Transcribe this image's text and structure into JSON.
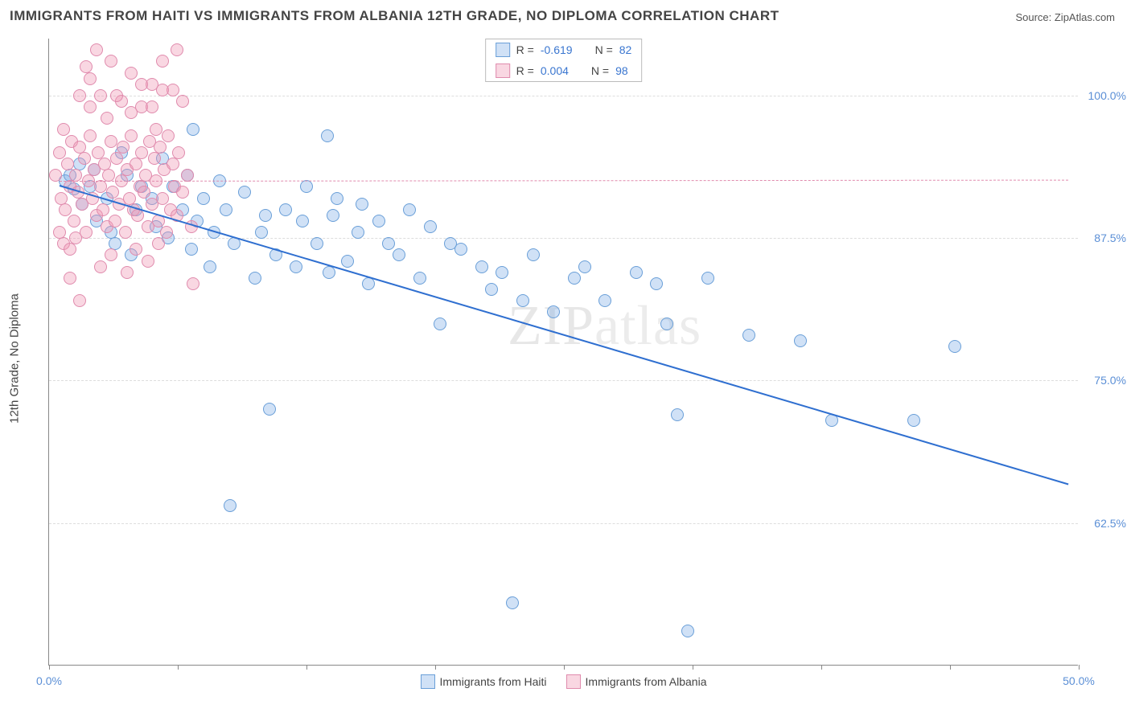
{
  "title": "IMMIGRANTS FROM HAITI VS IMMIGRANTS FROM ALBANIA 12TH GRADE, NO DIPLOMA CORRELATION CHART",
  "source": "Source: ZipAtlas.com",
  "watermark_a": "ZIP",
  "watermark_b": "atlas",
  "y_axis_label": "12th Grade, No Diploma",
  "chart": {
    "type": "scatter",
    "xlim": [
      0,
      50
    ],
    "ylim": [
      50,
      105
    ],
    "x_ticks": [
      0,
      6.25,
      12.5,
      18.75,
      25,
      31.25,
      37.5,
      43.75,
      50
    ],
    "x_tick_labels": {
      "0": "0.0%",
      "50": "50.0%"
    },
    "y_ticks": [
      62.5,
      75.0,
      87.5,
      100.0
    ],
    "y_tick_labels": [
      "62.5%",
      "75.0%",
      "87.5%",
      "100.0%"
    ],
    "grid_color": "#dddddd",
    "background_color": "#ffffff",
    "marker_radius": 8,
    "marker_stroke_width": 1,
    "series": [
      {
        "name": "Immigrants from Haiti",
        "fill": "rgba(120,170,230,0.35)",
        "stroke": "#6a9fd8",
        "r_value": "-0.619",
        "n_value": "82",
        "regression": {
          "x1": 0.5,
          "y1": 92.2,
          "x2": 49.5,
          "y2": 66.0,
          "color": "#2f6fd0",
          "width": 2,
          "dash": "solid"
        },
        "points": [
          [
            0.8,
            92.5
          ],
          [
            1.0,
            93.0
          ],
          [
            1.2,
            91.8
          ],
          [
            1.5,
            94.0
          ],
          [
            1.6,
            90.5
          ],
          [
            2.0,
            92.0
          ],
          [
            2.2,
            93.5
          ],
          [
            2.3,
            89.0
          ],
          [
            2.8,
            91.0
          ],
          [
            3.0,
            88.0
          ],
          [
            3.2,
            87.0
          ],
          [
            3.5,
            95.0
          ],
          [
            3.8,
            93.0
          ],
          [
            4.0,
            86.0
          ],
          [
            4.2,
            90.0
          ],
          [
            4.5,
            92.0
          ],
          [
            5.0,
            91.0
          ],
          [
            5.2,
            88.5
          ],
          [
            5.5,
            94.5
          ],
          [
            5.8,
            87.5
          ],
          [
            6.0,
            92.0
          ],
          [
            6.5,
            90.0
          ],
          [
            6.7,
            93.0
          ],
          [
            6.9,
            86.5
          ],
          [
            7.0,
            97.0
          ],
          [
            7.2,
            89.0
          ],
          [
            7.5,
            91.0
          ],
          [
            7.8,
            85.0
          ],
          [
            8.0,
            88.0
          ],
          [
            8.3,
            92.5
          ],
          [
            8.6,
            90.0
          ],
          [
            8.8,
            64.0
          ],
          [
            9.0,
            87.0
          ],
          [
            9.5,
            91.5
          ],
          [
            10.0,
            84.0
          ],
          [
            10.3,
            88.0
          ],
          [
            10.5,
            89.5
          ],
          [
            10.7,
            72.5
          ],
          [
            11.0,
            86.0
          ],
          [
            11.5,
            90.0
          ],
          [
            12.0,
            85.0
          ],
          [
            12.3,
            89.0
          ],
          [
            12.5,
            92.0
          ],
          [
            13.0,
            87.0
          ],
          [
            13.5,
            96.5
          ],
          [
            13.6,
            84.5
          ],
          [
            13.8,
            89.5
          ],
          [
            14.0,
            91.0
          ],
          [
            14.5,
            85.5
          ],
          [
            15.0,
            88.0
          ],
          [
            15.2,
            90.5
          ],
          [
            15.5,
            83.5
          ],
          [
            16.0,
            89.0
          ],
          [
            16.5,
            87.0
          ],
          [
            17.0,
            86.0
          ],
          [
            17.5,
            90.0
          ],
          [
            18.0,
            84.0
          ],
          [
            18.5,
            88.5
          ],
          [
            19.0,
            80.0
          ],
          [
            19.5,
            87.0
          ],
          [
            20.0,
            86.5
          ],
          [
            21.0,
            85.0
          ],
          [
            21.5,
            83.0
          ],
          [
            22.0,
            84.5
          ],
          [
            22.5,
            55.5
          ],
          [
            23.0,
            82.0
          ],
          [
            23.5,
            86.0
          ],
          [
            24.5,
            81.0
          ],
          [
            25.5,
            84.0
          ],
          [
            26.0,
            85.0
          ],
          [
            27.0,
            82.0
          ],
          [
            28.5,
            84.5
          ],
          [
            29.5,
            83.5
          ],
          [
            30.0,
            80.0
          ],
          [
            30.5,
            72.0
          ],
          [
            31.0,
            53.0
          ],
          [
            32.0,
            84.0
          ],
          [
            34.0,
            79.0
          ],
          [
            36.5,
            78.5
          ],
          [
            38.0,
            71.5
          ],
          [
            42.0,
            71.5
          ],
          [
            44.0,
            78.0
          ]
        ]
      },
      {
        "name": "Immigrants from Albania",
        "fill": "rgba(240,150,180,0.38)",
        "stroke": "#e08bad",
        "r_value": "0.004",
        "n_value": "98",
        "regression": {
          "x1": 0.5,
          "y1": 92.5,
          "x2": 49.5,
          "y2": 92.6,
          "color": "#e08bad",
          "width": 1.2,
          "dash": "dashed"
        },
        "points": [
          [
            0.3,
            93.0
          ],
          [
            0.5,
            95.0
          ],
          [
            0.6,
            91.0
          ],
          [
            0.7,
            97.0
          ],
          [
            0.8,
            90.0
          ],
          [
            0.9,
            94.0
          ],
          [
            1.0,
            92.0
          ],
          [
            1.1,
            96.0
          ],
          [
            1.2,
            89.0
          ],
          [
            1.3,
            93.0
          ],
          [
            1.4,
            91.5
          ],
          [
            1.5,
            95.5
          ],
          [
            1.6,
            90.5
          ],
          [
            1.7,
            94.5
          ],
          [
            1.8,
            88.0
          ],
          [
            1.9,
            92.5
          ],
          [
            2.0,
            96.5
          ],
          [
            2.1,
            91.0
          ],
          [
            2.2,
            93.5
          ],
          [
            2.3,
            89.5
          ],
          [
            2.4,
            95.0
          ],
          [
            2.5,
            92.0
          ],
          [
            2.6,
            90.0
          ],
          [
            2.7,
            94.0
          ],
          [
            2.8,
            88.5
          ],
          [
            2.9,
            93.0
          ],
          [
            3.0,
            96.0
          ],
          [
            3.1,
            91.5
          ],
          [
            3.2,
            89.0
          ],
          [
            3.3,
            94.5
          ],
          [
            3.4,
            90.5
          ],
          [
            3.5,
            92.5
          ],
          [
            3.6,
            95.5
          ],
          [
            3.7,
            88.0
          ],
          [
            3.8,
            93.5
          ],
          [
            3.9,
            91.0
          ],
          [
            4.0,
            96.5
          ],
          [
            4.1,
            90.0
          ],
          [
            4.2,
            94.0
          ],
          [
            4.3,
            89.5
          ],
          [
            4.4,
            92.0
          ],
          [
            4.5,
            95.0
          ],
          [
            4.6,
            91.5
          ],
          [
            4.7,
            93.0
          ],
          [
            4.8,
            88.5
          ],
          [
            4.9,
            96.0
          ],
          [
            5.0,
            90.5
          ],
          [
            5.1,
            94.5
          ],
          [
            5.2,
            92.5
          ],
          [
            5.3,
            89.0
          ],
          [
            5.4,
            95.5
          ],
          [
            5.5,
            91.0
          ],
          [
            5.6,
            93.5
          ],
          [
            5.7,
            88.0
          ],
          [
            5.8,
            96.5
          ],
          [
            5.9,
            90.0
          ],
          [
            6.0,
            94.0
          ],
          [
            6.1,
            92.0
          ],
          [
            6.2,
            89.5
          ],
          [
            6.3,
            95.0
          ],
          [
            6.5,
            91.5
          ],
          [
            6.7,
            93.0
          ],
          [
            6.9,
            88.5
          ],
          [
            7.0,
            83.5
          ],
          [
            1.0,
            84.0
          ],
          [
            1.5,
            82.0
          ],
          [
            2.0,
            99.0
          ],
          [
            2.5,
            100.0
          ],
          [
            3.0,
            103.0
          ],
          [
            3.5,
            99.5
          ],
          [
            4.0,
            102.0
          ],
          [
            4.5,
            99.0
          ],
          [
            5.0,
            101.0
          ],
          [
            5.2,
            97.0
          ],
          [
            5.5,
            103.0
          ],
          [
            6.0,
            100.5
          ],
          [
            6.2,
            104.0
          ],
          [
            6.5,
            99.5
          ],
          [
            1.8,
            102.5
          ],
          [
            2.3,
            104.0
          ],
          [
            0.5,
            88.0
          ],
          [
            0.7,
            87.0
          ],
          [
            1.0,
            86.5
          ],
          [
            1.3,
            87.5
          ],
          [
            2.5,
            85.0
          ],
          [
            3.0,
            86.0
          ],
          [
            3.8,
            84.5
          ],
          [
            4.2,
            86.5
          ],
          [
            4.8,
            85.5
          ],
          [
            5.3,
            87.0
          ],
          [
            1.5,
            100.0
          ],
          [
            2.0,
            101.5
          ],
          [
            2.8,
            98.0
          ],
          [
            3.3,
            100.0
          ],
          [
            4.0,
            98.5
          ],
          [
            4.5,
            101.0
          ],
          [
            5.0,
            99.0
          ],
          [
            5.5,
            100.5
          ]
        ]
      }
    ]
  },
  "legend": {
    "r_label": "R =",
    "n_label": "N ="
  }
}
